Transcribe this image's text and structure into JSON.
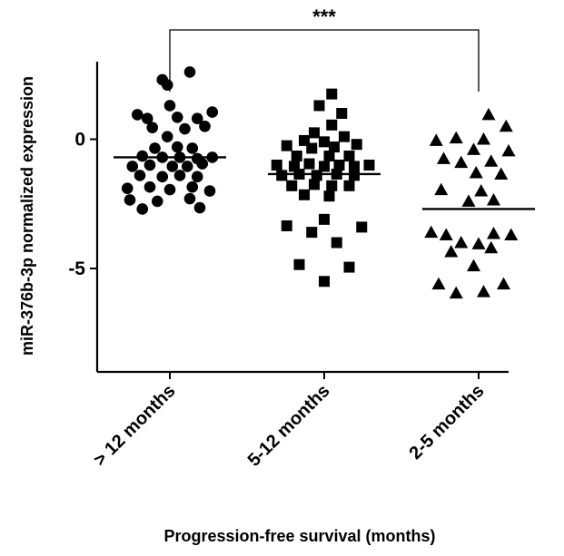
{
  "chart_data": {
    "type": "scatter",
    "xlabel": "Progression-free survival (months)",
    "ylabel": "miR-376b-3p normalized expression",
    "categories": [
      "> 12 months",
      "5-12 months",
      "2-5 months"
    ],
    "ylim": [
      -9,
      3
    ],
    "yticks": [
      0,
      -5
    ],
    "grid": false,
    "significance": {
      "from": 0,
      "to": 2,
      "label": "***"
    },
    "series": [
      {
        "marker": "circle",
        "mean": -0.7,
        "points": [
          {
            "dx": 0.4,
            "y": 2.6
          },
          {
            "dx": -0.15,
            "y": 2.3
          },
          {
            "dx": -0.05,
            "y": 2.1
          },
          {
            "dx": 0.0,
            "y": 1.3
          },
          {
            "dx": -0.65,
            "y": 0.95
          },
          {
            "dx": -0.45,
            "y": 0.8
          },
          {
            "dx": 0.15,
            "y": 0.85
          },
          {
            "dx": 0.55,
            "y": 0.8
          },
          {
            "dx": 0.85,
            "y": 1.05
          },
          {
            "dx": -0.35,
            "y": 0.45
          },
          {
            "dx": 0.3,
            "y": 0.4
          },
          {
            "dx": 0.7,
            "y": 0.5
          },
          {
            "dx": -0.05,
            "y": 0.1
          },
          {
            "dx": -0.3,
            "y": -0.35
          },
          {
            "dx": 0.15,
            "y": -0.3
          },
          {
            "dx": 0.45,
            "y": -0.35
          },
          {
            "dx": -0.55,
            "y": -0.65
          },
          {
            "dx": -0.15,
            "y": -0.7
          },
          {
            "dx": 0.2,
            "y": -0.7
          },
          {
            "dx": 0.55,
            "y": -0.75
          },
          {
            "dx": 0.85,
            "y": -0.7
          },
          {
            "dx": -0.75,
            "y": -1.05
          },
          {
            "dx": -0.4,
            "y": -1.0
          },
          {
            "dx": 0.05,
            "y": -1.05
          },
          {
            "dx": 0.35,
            "y": -1.05
          },
          {
            "dx": 0.65,
            "y": -0.95
          },
          {
            "dx": -0.6,
            "y": -1.4
          },
          {
            "dx": -0.15,
            "y": -1.45
          },
          {
            "dx": 0.2,
            "y": -1.4
          },
          {
            "dx": 0.55,
            "y": -1.45
          },
          {
            "dx": -0.85,
            "y": -1.9
          },
          {
            "dx": -0.4,
            "y": -1.85
          },
          {
            "dx": 0.0,
            "y": -1.95
          },
          {
            "dx": 0.45,
            "y": -1.85
          },
          {
            "dx": 0.8,
            "y": -2.0
          },
          {
            "dx": -0.8,
            "y": -2.35
          },
          {
            "dx": -0.25,
            "y": -2.4
          },
          {
            "dx": 0.4,
            "y": -2.3
          },
          {
            "dx": -0.55,
            "y": -2.7
          },
          {
            "dx": 0.6,
            "y": -2.65
          }
        ]
      },
      {
        "marker": "square",
        "mean": -1.35,
        "points": [
          {
            "dx": 0.15,
            "y": 1.75
          },
          {
            "dx": -0.1,
            "y": 1.3
          },
          {
            "dx": 0.35,
            "y": 1.0
          },
          {
            "dx": 0.15,
            "y": 0.55
          },
          {
            "dx": -0.2,
            "y": 0.25
          },
          {
            "dx": -0.4,
            "y": -0.05
          },
          {
            "dx": 0.4,
            "y": 0.1
          },
          {
            "dx": 0.0,
            "y": -0.1
          },
          {
            "dx": -0.75,
            "y": -0.25
          },
          {
            "dx": -0.25,
            "y": -0.35
          },
          {
            "dx": 0.2,
            "y": -0.3
          },
          {
            "dx": 0.65,
            "y": -0.2
          },
          {
            "dx": -0.55,
            "y": -0.65
          },
          {
            "dx": 0.1,
            "y": -0.65
          },
          {
            "dx": 0.5,
            "y": -0.65
          },
          {
            "dx": -0.95,
            "y": -1.0
          },
          {
            "dx": -0.6,
            "y": -1.05
          },
          {
            "dx": -0.3,
            "y": -0.95
          },
          {
            "dx": 0.0,
            "y": -1.05
          },
          {
            "dx": 0.3,
            "y": -1.0
          },
          {
            "dx": 0.6,
            "y": -1.05
          },
          {
            "dx": 0.9,
            "y": -1.0
          },
          {
            "dx": -0.85,
            "y": -1.4
          },
          {
            "dx": -0.5,
            "y": -1.35
          },
          {
            "dx": -0.15,
            "y": -1.4
          },
          {
            "dx": 0.25,
            "y": -1.35
          },
          {
            "dx": 0.6,
            "y": -1.4
          },
          {
            "dx": -0.65,
            "y": -1.8
          },
          {
            "dx": -0.2,
            "y": -1.75
          },
          {
            "dx": 0.15,
            "y": -1.8
          },
          {
            "dx": 0.5,
            "y": -1.8
          },
          {
            "dx": -0.4,
            "y": -2.15
          },
          {
            "dx": 0.1,
            "y": -2.2
          },
          {
            "dx": 0.0,
            "y": -3.1
          },
          {
            "dx": -0.75,
            "y": -3.35
          },
          {
            "dx": 0.75,
            "y": -3.4
          },
          {
            "dx": -0.25,
            "y": -3.6
          },
          {
            "dx": 0.25,
            "y": -4.0
          },
          {
            "dx": -0.5,
            "y": -4.85
          },
          {
            "dx": 0.5,
            "y": -4.95
          },
          {
            "dx": 0.0,
            "y": -5.5
          }
        ]
      },
      {
        "marker": "triangle",
        "mean": -2.7,
        "points": [
          {
            "dx": 0.2,
            "y": 0.95
          },
          {
            "dx": 0.55,
            "y": 0.5
          },
          {
            "dx": -0.85,
            "y": -0.05
          },
          {
            "dx": -0.45,
            "y": 0.05
          },
          {
            "dx": 0.1,
            "y": 0.0
          },
          {
            "dx": -0.1,
            "y": -0.4
          },
          {
            "dx": 0.6,
            "y": -0.45
          },
          {
            "dx": -0.7,
            "y": -0.75
          },
          {
            "dx": -0.35,
            "y": -0.9
          },
          {
            "dx": 0.25,
            "y": -0.85
          },
          {
            "dx": -0.05,
            "y": -1.3
          },
          {
            "dx": 0.45,
            "y": -1.35
          },
          {
            "dx": -0.75,
            "y": -1.95
          },
          {
            "dx": 0.05,
            "y": -2.0
          },
          {
            "dx": -0.2,
            "y": -2.4
          },
          {
            "dx": 0.3,
            "y": -2.35
          },
          {
            "dx": -0.95,
            "y": -3.6
          },
          {
            "dx": -0.65,
            "y": -3.7
          },
          {
            "dx": 0.3,
            "y": -3.65
          },
          {
            "dx": 0.65,
            "y": -3.7
          },
          {
            "dx": -0.35,
            "y": -4.0
          },
          {
            "dx": 0.0,
            "y": -4.05
          },
          {
            "dx": -0.55,
            "y": -4.35
          },
          {
            "dx": 0.25,
            "y": -4.2
          },
          {
            "dx": -0.1,
            "y": -4.9
          },
          {
            "dx": -0.8,
            "y": -5.6
          },
          {
            "dx": 0.5,
            "y": -5.6
          },
          {
            "dx": -0.45,
            "y": -5.95
          },
          {
            "dx": 0.1,
            "y": -5.9
          }
        ]
      }
    ]
  }
}
